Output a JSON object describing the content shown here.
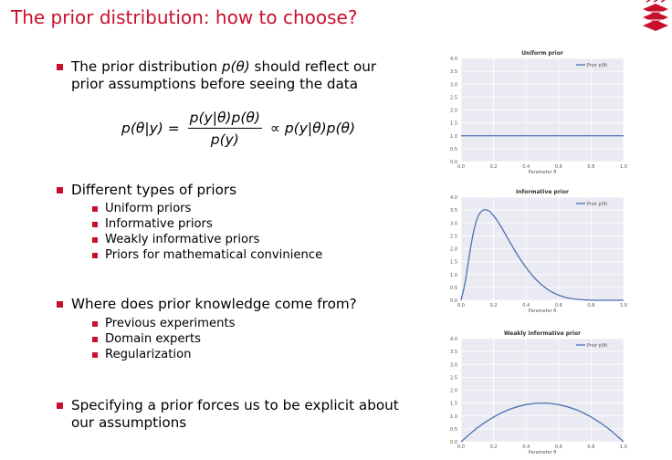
{
  "slide": {
    "title": "The prior distribution: how to choose?",
    "bullets": {
      "b1": "The prior distribution p(θ) should reflect our prior assumptions before seeing the data",
      "b1_line1_pre": "The prior distribution ",
      "b1_line1_math": "p(θ)",
      "b1_line1_post": " should reflect our",
      "b1_line2": "prior assumptions before seeing the data",
      "b2": "Different types of priors",
      "b2_items": [
        "Uniform priors",
        "Informative priors",
        "Weakly informative priors",
        "Priors for mathematical convinience"
      ],
      "b3": "Where does prior knowledge come from?",
      "b3_items": [
        "Previous experiments",
        "Domain experts",
        "Regularization"
      ],
      "b4_line1": "Specifying a prior forces us to be explicit about",
      "b4_line2": "our assumptions"
    },
    "formula": {
      "lhs": "p(θ|y) =",
      "numerator": "p(y|θ)p(θ)",
      "denominator": "p(y)",
      "rhs": "∝ p(y|θ)p(θ)"
    }
  },
  "colors": {
    "accent": "#c8102e",
    "series": "#4c72b0",
    "plot_bg": "#eaeaf2"
  },
  "chart_data": [
    {
      "type": "line",
      "title": "Uniform prior",
      "xlabel": "Parameter θ",
      "ylabel": "",
      "xlim": [
        0,
        1
      ],
      "ylim": [
        0,
        4
      ],
      "xticks": [
        "0.0",
        "0.2",
        "0.4",
        "0.6",
        "0.8",
        "1.0"
      ],
      "yticks": [
        "0.0",
        "0.5",
        "1.0",
        "1.5",
        "2.0",
        "2.5",
        "3.0",
        "3.5",
        "4.0"
      ],
      "legend": "top-right",
      "series": [
        {
          "name": "Prior p(θ)",
          "x": [
            0,
            0.1,
            0.2,
            0.3,
            0.4,
            0.5,
            0.6,
            0.7,
            0.8,
            0.9,
            1.0
          ],
          "y": [
            1,
            1,
            1,
            1,
            1,
            1,
            1,
            1,
            1,
            1,
            1
          ]
        }
      ]
    },
    {
      "type": "line",
      "title": "Informative prior",
      "xlabel": "Parameter θ",
      "ylabel": "",
      "xlim": [
        0,
        1
      ],
      "ylim": [
        0,
        4
      ],
      "xticks": [
        "0.0",
        "0.2",
        "0.4",
        "0.6",
        "0.8",
        "1.0"
      ],
      "yticks": [
        "0.0",
        "0.5",
        "1.0",
        "1.5",
        "2.0",
        "2.5",
        "3.0",
        "3.5",
        "4.0"
      ],
      "legend": "top-right",
      "series": [
        {
          "name": "Prior p(θ)",
          "x": [
            0,
            0.025,
            0.05,
            0.075,
            0.1,
            0.125,
            0.15,
            0.175,
            0.2,
            0.225,
            0.25,
            0.3,
            0.35,
            0.4,
            0.45,
            0.5,
            0.55,
            0.6,
            0.65,
            0.7,
            0.75,
            0.8,
            0.9,
            1.0
          ],
          "y": [
            0,
            0.7,
            1.71,
            2.6,
            3.18,
            3.45,
            3.51,
            3.45,
            3.28,
            3.06,
            2.81,
            2.26,
            1.73,
            1.27,
            0.88,
            0.58,
            0.35,
            0.2,
            0.1,
            0.05,
            0.02,
            0.005,
            0.0,
            0.0
          ]
        }
      ]
    },
    {
      "type": "line",
      "title": "Weakly informative prior",
      "xlabel": "Parameter θ",
      "ylabel": "",
      "xlim": [
        0,
        1
      ],
      "ylim": [
        0,
        4
      ],
      "xticks": [
        "0.0",
        "0.2",
        "0.4",
        "0.6",
        "0.8",
        "1.0"
      ],
      "yticks": [
        "0.0",
        "0.5",
        "1.0",
        "1.5",
        "2.0",
        "2.5",
        "3.0",
        "3.5",
        "4.0"
      ],
      "legend": "top-right",
      "series": [
        {
          "name": "Prior p(θ)",
          "x": [
            0,
            0.1,
            0.2,
            0.3,
            0.4,
            0.5,
            0.6,
            0.7,
            0.8,
            0.9,
            1.0
          ],
          "y": [
            0,
            0.54,
            0.96,
            1.26,
            1.44,
            1.5,
            1.44,
            1.26,
            0.96,
            0.54,
            0
          ]
        }
      ]
    }
  ]
}
